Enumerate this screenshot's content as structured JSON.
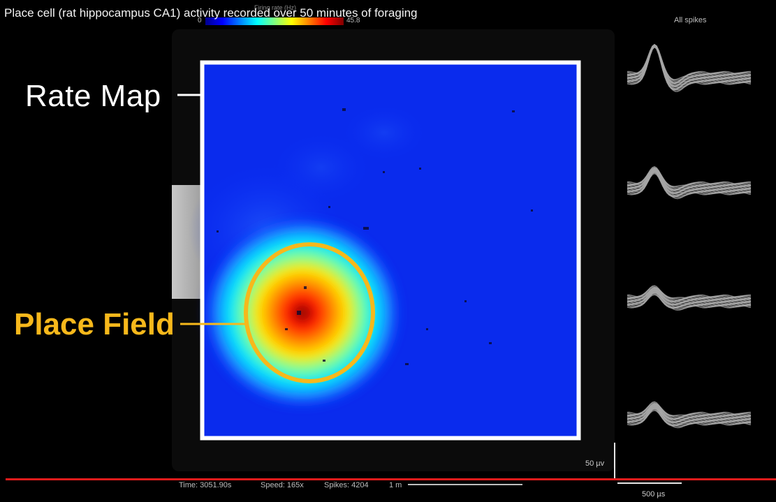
{
  "title": "Place cell (rat hippocampus CA1) activity recorded over 50 minutes of foraging",
  "colorbar": {
    "label": "Firing rate (Hz)",
    "min": "0",
    "max": "45.8"
  },
  "annotations": {
    "rate_map": "Rate Map",
    "place_field": "Place Field"
  },
  "colors": {
    "accent": "#f7b81b",
    "frame": "#ffffff",
    "timeline": "#e01b1b",
    "waveform": "#a6a6a6"
  },
  "waveforms": {
    "title": "All spikes",
    "count": 4,
    "scale_voltage": "50 µv",
    "scale_time": "500 µs"
  },
  "status": {
    "time": "Time: 3051.90s",
    "speed": "Speed: 165x",
    "spikes": "Spikes: 4204",
    "scale": "1 m"
  }
}
